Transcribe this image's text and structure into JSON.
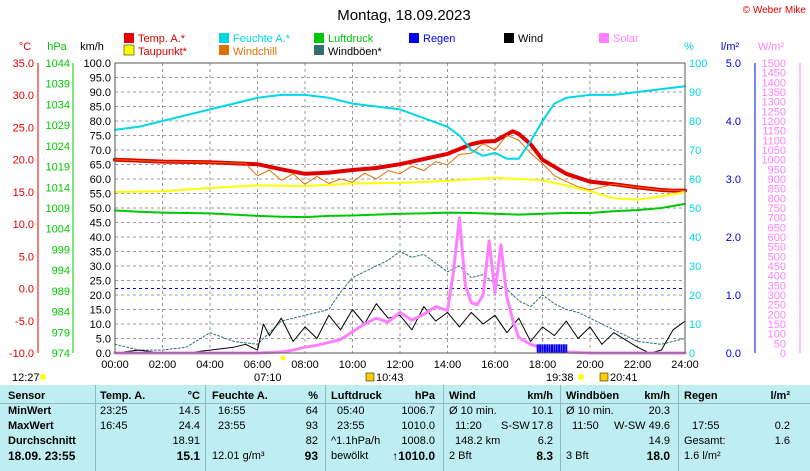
{
  "page": {
    "title": "Montag, 18.09.2023",
    "copyright": "© Weber Mike"
  },
  "legend": [
    {
      "label": "Temp. A.*",
      "color": "#e00000"
    },
    {
      "label": "Taupunkt*",
      "color": "#ffff00"
    },
    {
      "label": "Feuchte A.*",
      "color": "#00d8e8"
    },
    {
      "label": "Windchill",
      "color": "#e07000"
    },
    {
      "label": "Luftdruck",
      "color": "#00c800"
    },
    {
      "label": "Windböen*",
      "color": "#2f6f6f"
    },
    {
      "label": "Regen",
      "color": "#0000ee"
    },
    {
      "label": "Wind",
      "color": "#000000"
    },
    {
      "label": "Solar",
      "color": "#ff80ff"
    }
  ],
  "axis_headers": {
    "temp": "°C",
    "pressure": "hPa",
    "wind": "km/h",
    "humidity": "%",
    "rain": "l/m²",
    "solar": "W/m²"
  },
  "colors": {
    "temp": "#e00000",
    "pressure": "#00c800",
    "humidity": "#00d8e8",
    "rain": "#0000ee",
    "solar": "#ff80ff",
    "grid": "#999999"
  },
  "sun": {
    "sunrise": "07:10",
    "sunset": "19:38",
    "moonrise": "10:43",
    "moonset": "20:41",
    "left_time": "12:27"
  },
  "chart_data": {
    "type": "line",
    "x": [
      "00:00",
      "02:00",
      "04:00",
      "06:00",
      "08:00",
      "10:00",
      "12:00",
      "14:00",
      "16:00",
      "18:00",
      "20:00",
      "22:00",
      "24:00"
    ],
    "xlim": [
      0,
      24
    ],
    "axes": {
      "temp": {
        "label": "°C",
        "ylim": [
          -10,
          35
        ],
        "ticks": [
          "35.0",
          "30.0",
          "25.0",
          "20.0",
          "15.0",
          "10.0",
          "5.0",
          "0.0",
          "-5.0",
          "-10.0"
        ]
      },
      "pressure": {
        "label": "hPa",
        "ylim": [
          974,
          1044
        ],
        "ticks": [
          "1044",
          "1039",
          "1034",
          "1029",
          "1024",
          "1019",
          "1014",
          "1009",
          "1004",
          "999",
          "994",
          "989",
          "984",
          "979",
          "974"
        ]
      },
      "wind": {
        "label": "km/h",
        "ylim": [
          0,
          100
        ],
        "ticks": [
          "100.0",
          "95.0",
          "90.0",
          "85.0",
          "80.0",
          "75.0",
          "70.0",
          "65.0",
          "60.0",
          "55.0",
          "50.0",
          "45.0",
          "40.0",
          "35.0",
          "30.0",
          "25.0",
          "20.0",
          "15.0",
          "10.0",
          "5.0",
          "0.0"
        ]
      },
      "humidity": {
        "label": "%",
        "ylim": [
          0,
          100
        ],
        "ticks": [
          "100",
          "90",
          "80",
          "70",
          "60",
          "50",
          "40",
          "30",
          "20",
          "10",
          "0"
        ]
      },
      "rain": {
        "label": "l/m²",
        "ylim": [
          0,
          5
        ],
        "ticks": [
          "5.0",
          "4.0",
          "3.0",
          "2.0",
          "1.0",
          "0.0"
        ]
      },
      "solar": {
        "label": "W/m²",
        "ylim": [
          0,
          1500
        ],
        "ticks": [
          "1500",
          "1450",
          "1400",
          "1350",
          "1300",
          "1250",
          "1200",
          "1150",
          "1100",
          "1050",
          "1000",
          "950",
          "900",
          "850",
          "800",
          "750",
          "700",
          "650",
          "600",
          "550",
          "500",
          "450",
          "400",
          "350",
          "300",
          "250",
          "200",
          "150",
          "100",
          "50",
          "0"
        ]
      }
    },
    "series": [
      {
        "name": "Temp. A.*",
        "axis": "temp",
        "color": "#e00000",
        "width": 4,
        "x": [
          0,
          2,
          4,
          6,
          7,
          8,
          9,
          10,
          11,
          12,
          13,
          14,
          15,
          15.5,
          16,
          16.5,
          16.75,
          17,
          17.5,
          18,
          19,
          20,
          21,
          22,
          23,
          23.5,
          24
        ],
        "y": [
          20.0,
          19.7,
          19.6,
          19.3,
          18.5,
          17.8,
          18.0,
          18.4,
          18.7,
          19.3,
          20.1,
          20.9,
          22.4,
          22.8,
          22.9,
          23.9,
          24.4,
          24.0,
          22.4,
          20.0,
          17.8,
          16.6,
          16.2,
          15.7,
          15.3,
          15.2,
          15.2
        ]
      },
      {
        "name": "Taupunkt*",
        "axis": "temp",
        "color": "#ffff00",
        "width": 2,
        "x": [
          0,
          2,
          4,
          6,
          8,
          10,
          12,
          14,
          16,
          17,
          18,
          19,
          20,
          21,
          22,
          23,
          24
        ],
        "y": [
          15.0,
          15.1,
          15.6,
          16.0,
          15.9,
          16.3,
          16.4,
          16.7,
          17.2,
          17.0,
          16.8,
          16.0,
          15.1,
          14.0,
          13.8,
          14.3,
          15.0
        ]
      },
      {
        "name": "Windchill",
        "axis": "temp",
        "color": "#e07000",
        "width": 1,
        "x": [
          0,
          2,
          4,
          5.5,
          6,
          6.5,
          7,
          7.5,
          8,
          8.5,
          9,
          9.5,
          10,
          10.5,
          11,
          11.5,
          12,
          12.5,
          13,
          13.5,
          14,
          14.5,
          15,
          15.5,
          16,
          16.5,
          17,
          17.5,
          18,
          18.5,
          19,
          19.5,
          20,
          21,
          22,
          23,
          24
        ],
        "y": [
          20.0,
          19.7,
          19.6,
          19.4,
          17.5,
          18.4,
          16.8,
          17.8,
          16.2,
          17.4,
          16.3,
          17.0,
          16.5,
          17.9,
          17.0,
          18.3,
          17.8,
          19.0,
          18.3,
          19.7,
          19.2,
          20.8,
          21.0,
          22.5,
          21.5,
          23.8,
          23.0,
          21.0,
          19.4,
          17.5,
          16.6,
          15.8,
          15.3,
          16.2,
          15.7,
          15.3,
          15.2
        ]
      },
      {
        "name": "Feuchte A.*",
        "axis": "humidity",
        "color": "#00d8e8",
        "width": 2,
        "x": [
          0,
          1,
          2,
          3,
          4,
          5,
          6,
          7,
          8,
          9,
          10,
          11,
          12,
          13,
          14,
          14.5,
          15,
          15.5,
          16,
          16.5,
          17,
          17.5,
          18,
          18.5,
          19,
          20,
          21,
          22,
          23,
          24
        ],
        "y": [
          77,
          78,
          80,
          82,
          84,
          86,
          88,
          89,
          89,
          88,
          86,
          85,
          84,
          81,
          78,
          75,
          70,
          68,
          69,
          67,
          67,
          73,
          80,
          86,
          88,
          89,
          89,
          90,
          91,
          92
        ]
      },
      {
        "name": "Luftdruck",
        "axis": "pressure",
        "color": "#00c800",
        "width": 2,
        "x": [
          0,
          1,
          2,
          3,
          4,
          5,
          6,
          7,
          8,
          9,
          10,
          11,
          12,
          13,
          14,
          15,
          16,
          17,
          18,
          19,
          20,
          21,
          22,
          23,
          24
        ],
        "y": [
          1008.4,
          1008.1,
          1007.9,
          1007.8,
          1007.7,
          1007.4,
          1007.1,
          1006.9,
          1006.8,
          1007.1,
          1007.2,
          1007.4,
          1007.6,
          1007.7,
          1007.9,
          1007.8,
          1007.6,
          1007.4,
          1007.6,
          1007.8,
          1007.8,
          1008.2,
          1008.5,
          1009.0,
          1010.0
        ]
      },
      {
        "name": "Windböen*",
        "axis": "wind",
        "color": "#2f6f6f",
        "width": 1,
        "dash": "2,2",
        "x": [
          0,
          0.5,
          1,
          2,
          3,
          4,
          5,
          6,
          7,
          8,
          9,
          9.5,
          10,
          10.5,
          11,
          11.5,
          12,
          12.5,
          13,
          13.5,
          14,
          14.5,
          15,
          15.5,
          16,
          16.5,
          17,
          17.5,
          18,
          18.5,
          19,
          19.5,
          20,
          21,
          22,
          23,
          24
        ],
        "y": [
          3,
          2,
          1,
          1,
          2,
          7,
          4,
          3,
          11,
          13,
          15,
          21,
          26,
          28,
          30,
          32,
          35,
          33,
          34,
          31,
          28,
          30,
          26,
          27,
          24,
          22,
          18,
          16,
          20,
          17,
          15,
          14,
          12,
          8,
          4,
          3,
          5
        ]
      },
      {
        "name": "Wind",
        "axis": "wind",
        "color": "#000000",
        "width": 1,
        "x": [
          0,
          1,
          2,
          3,
          4,
          5,
          5.5,
          6,
          6.25,
          6.5,
          7,
          7.5,
          8,
          8.5,
          9,
          9.5,
          10,
          10.5,
          11,
          11.5,
          12,
          12.5,
          13,
          13.5,
          14,
          14.5,
          15,
          15.5,
          16,
          16.5,
          17,
          17.5,
          18,
          18.5,
          19,
          19.5,
          20,
          20.5,
          21,
          22,
          22.5,
          23,
          23.5,
          24
        ],
        "y": [
          0,
          1,
          0,
          0,
          1,
          2,
          3,
          1,
          10,
          6,
          12,
          4,
          9,
          5,
          13,
          8,
          15,
          10,
          17,
          12,
          13,
          8,
          16,
          11,
          14,
          9,
          14,
          10,
          13,
          7,
          12,
          4,
          9,
          6,
          11,
          5,
          9,
          3,
          7,
          2,
          0,
          1,
          8,
          11
        ]
      },
      {
        "name": "Solar",
        "axis": "solar",
        "color": "#ff80ff",
        "width": 3,
        "x": [
          0,
          6,
          7,
          7.5,
          8,
          8.5,
          9,
          9.5,
          10,
          10.5,
          11,
          11.5,
          12,
          12.5,
          13,
          13.5,
          14,
          14.25,
          14.5,
          14.75,
          15,
          15.25,
          15.5,
          15.75,
          16,
          16.25,
          16.5,
          16.75,
          17,
          17.5,
          18,
          18.5,
          19,
          20,
          24
        ],
        "y": [
          0,
          0,
          5,
          15,
          30,
          40,
          55,
          70,
          110,
          150,
          180,
          160,
          210,
          170,
          200,
          240,
          220,
          420,
          700,
          350,
          260,
          250,
          300,
          580,
          310,
          560,
          290,
          170,
          80,
          45,
          25,
          10,
          5,
          0,
          0
        ]
      }
    ],
    "rain_bars": {
      "axis": "rain",
      "x_from": 17.8,
      "x_to": 19.0,
      "value": 0.15,
      "color": "#0000ee"
    }
  },
  "stats": {
    "headers": {
      "sensor": "Sensor",
      "temp": "Temp. A.",
      "temp_unit": "°C",
      "hum": "Feuchte A.",
      "hum_unit": "%",
      "press": "Luftdruck",
      "press_unit": "hPa",
      "wind": "Wind",
      "wind_unit": "km/h",
      "gust": "Windböen",
      "gust_unit": "km/h",
      "rain": "Regen",
      "rain_unit": "l/m²"
    },
    "row_labels": {
      "min": "MinWert",
      "max": "MaxWert",
      "avg": "Durchschnitt",
      "now": "18.09. 23:55"
    },
    "temp": {
      "min_time": "23:25",
      "min_val": "14.5",
      "max_time": "16:45",
      "max_val": "24.4",
      "avg_val": "18.91",
      "now_val": "15.1"
    },
    "hum": {
      "min_time": "16:55",
      "min_val": "64",
      "max_time": "23:55",
      "max_val": "93",
      "avg_val": "82",
      "now_abs": "12.01 g/m³",
      "now_val": "93"
    },
    "press": {
      "min_time": "05:40",
      "min_val": "1006.7",
      "max_time": "23:55",
      "max_val": "1010.0",
      "avg_label": "^1.1hPa/h",
      "avg_val": "1008.0",
      "now_text": "bewölkt",
      "now_val": "↑1010.0"
    },
    "wind": {
      "min_label": "Ø 10 min.",
      "min_val": "10.1",
      "max_time": "11:20",
      "max_dir": "S-SW",
      "max_val": "17.8",
      "dist": "148.2 km",
      "avg_val": "6.2",
      "now_bft": "2 Bft",
      "now_val": "8.3"
    },
    "gust": {
      "min_label": "Ø 10 min.",
      "min_val": "20.3",
      "max_time": "11:50",
      "max_dir": "W-SW",
      "max_val": "49.6",
      "avg_val": "14.9",
      "now_bft": "3 Bft",
      "now_val": "18.0"
    },
    "rain": {
      "max_time": "17:55",
      "max_val": "0.2",
      "total_label": "Gesamt:",
      "total_val": "1.6",
      "now_val": "1.6 l/m²"
    }
  }
}
